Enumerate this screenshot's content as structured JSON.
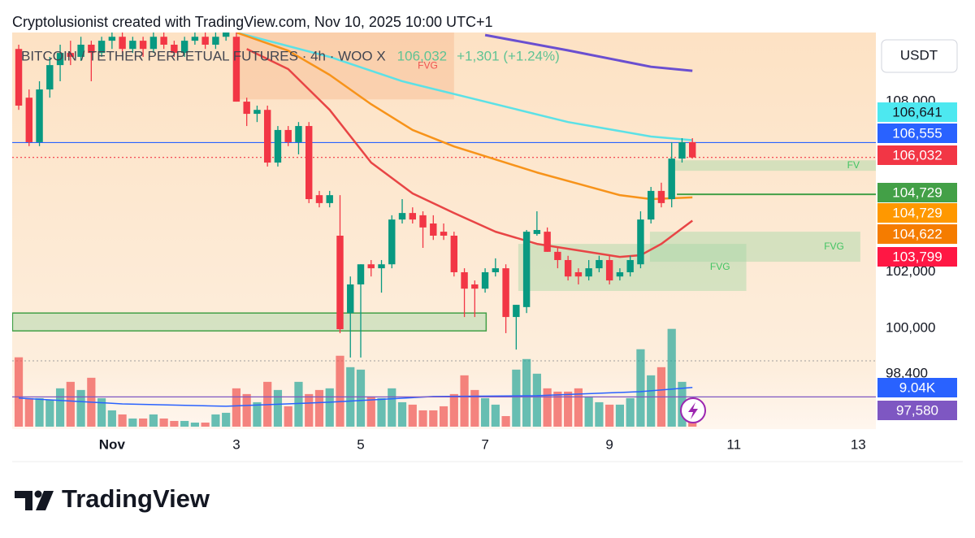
{
  "chart_data": {
    "type": "candlestick",
    "header": "Cryptolusionist created with TradingView.com, Nov 10, 2025 10:00 UTC+1",
    "title": "BITCOIN / TETHER PERPETUAL FUTURES · 4h · WOO X",
    "legend_price": "106,032",
    "legend_change": "+1,301 (+1.24%)",
    "currency": "USDT",
    "brand": "TradingView",
    "up_color": "#089981",
    "down_color": "#f23645",
    "x": [
      0,
      1,
      2,
      3,
      4,
      5,
      6,
      7,
      8,
      9,
      10,
      11,
      12,
      13,
      14,
      15,
      16,
      17,
      18,
      19,
      20,
      21,
      22,
      23,
      24,
      25,
      26,
      27,
      28,
      29,
      30,
      31,
      32,
      33,
      34,
      35,
      36,
      37,
      38,
      39,
      40,
      41,
      42,
      43,
      44,
      45,
      46,
      47,
      48,
      49,
      50,
      51,
      52,
      53,
      54,
      55,
      56,
      57,
      58,
      59,
      60,
      61,
      62,
      63,
      64,
      65
    ],
    "open": [
      109860,
      108140,
      106570,
      108430,
      109290,
      109720,
      109580,
      110010,
      109720,
      110150,
      110290,
      109860,
      110150,
      109860,
      110290,
      110010,
      109720,
      110150,
      110290,
      110010,
      110290,
      110290,
      108000,
      107570,
      107710,
      105850,
      107000,
      106570,
      107140,
      104700,
      104420,
      103270,
      100540,
      101550,
      102260,
      102120,
      102260,
      103840,
      104070,
      103990,
      103700,
      103410,
      103270,
      101980,
      101550,
      101400,
      101980,
      102120,
      100400,
      100750,
      103330,
      103410,
      102700,
      102410,
      101980,
      101830,
      102120,
      102410,
      101830,
      101980,
      102260,
      103840,
      104850,
      104560,
      105990,
      106570
    ],
    "high": [
      110010,
      108430,
      108720,
      109580,
      110010,
      110150,
      110290,
      110150,
      110290,
      110440,
      110440,
      110290,
      110290,
      110440,
      110440,
      110150,
      110290,
      110440,
      110440,
      110440,
      110580,
      110440,
      108140,
      107860,
      107860,
      107140,
      107140,
      107280,
      107280,
      104850,
      104850,
      104700,
      101830,
      102260,
      102410,
      102410,
      103990,
      104560,
      104270,
      104130,
      103990,
      103700,
      103410,
      102120,
      101690,
      102120,
      102470,
      102260,
      100830,
      103470,
      104130,
      103560,
      102840,
      102560,
      102120,
      102410,
      102560,
      102560,
      102120,
      102560,
      104130,
      104990,
      105140,
      106570,
      106710,
      106710
    ],
    "low": [
      107710,
      106430,
      106430,
      108140,
      108720,
      109290,
      109440,
      108720,
      109580,
      109860,
      109720,
      109720,
      109580,
      109720,
      109860,
      109580,
      109580,
      110010,
      109860,
      109860,
      110150,
      108000,
      107140,
      107280,
      105710,
      105710,
      106430,
      106140,
      104420,
      104270,
      104270,
      99830,
      98970,
      98970,
      101830,
      101260,
      102120,
      103700,
      103700,
      102840,
      103120,
      103120,
      101830,
      100400,
      100400,
      101260,
      101830,
      99830,
      99250,
      100540,
      103270,
      102700,
      102120,
      101690,
      101550,
      101690,
      101980,
      101550,
      101690,
      101830,
      102120,
      103700,
      104270,
      104270,
      105850,
      105990
    ],
    "close": [
      107860,
      106570,
      108430,
      109290,
      109720,
      109580,
      110010,
      109720,
      110150,
      110290,
      109860,
      110150,
      109860,
      110290,
      110010,
      109720,
      110150,
      110290,
      110010,
      110290,
      110440,
      108000,
      107570,
      107710,
      105850,
      107000,
      106570,
      107140,
      104560,
      104420,
      104700,
      99970,
      101550,
      102260,
      102120,
      102260,
      103840,
      104070,
      103840,
      103560,
      103270,
      103270,
      101980,
      101400,
      101400,
      101980,
      102120,
      100400,
      100830,
      103410,
      103470,
      102700,
      102410,
      101830,
      101830,
      102120,
      102410,
      101690,
      101980,
      102410,
      103840,
      104850,
      104420,
      105990,
      106570,
      106032
    ],
    "volume": [
      16000,
      6580,
      6580,
      6200,
      8840,
      10340,
      8460,
      11280,
      6580,
      3760,
      2820,
      1880,
      1880,
      2820,
      1880,
      1320,
      1320,
      940,
      940,
      2820,
      3200,
      8840,
      7520,
      5640,
      10340,
      8460,
      4700,
      10340,
      7520,
      8460,
      8840,
      16360,
      13720,
      13160,
      6960,
      6580,
      8840,
      5640,
      5080,
      3760,
      3760,
      4700,
      7520,
      11840,
      8460,
      6580,
      5080,
      2440,
      13160,
      15600,
      12220,
      8840,
      8080,
      8080,
      8840,
      6960,
      5640,
      5080,
      5080,
      6580,
      17860,
      11840,
      13720,
      22560,
      10340,
      5640
    ],
    "volume_ma": {
      "color": "#2962ff",
      "x": [
        0,
        10,
        20,
        30,
        40,
        50,
        60,
        65
      ],
      "values": [
        6580,
        5260,
        4700,
        5640,
        6960,
        7140,
        8080,
        9040
      ]
    },
    "moving_averages": [
      {
        "color": "#6a4fd0",
        "width": 3,
        "x": [
          45,
          53,
          61,
          65
        ],
        "values": [
          110350,
          109810,
          109230,
          109090
        ]
      },
      {
        "color": "#5ce1e6",
        "width": 2.5,
        "x": [
          21,
          30,
          37,
          45,
          53,
          61,
          65
        ],
        "values": [
          110440,
          109580,
          108720,
          108000,
          107280,
          106770,
          106641
        ]
      },
      {
        "color": "#f7931a",
        "width": 2.5,
        "x": [
          21,
          26,
          30,
          34,
          38,
          42,
          46,
          50,
          54,
          58,
          61,
          65
        ],
        "values": [
          110440,
          109800,
          108945,
          107910,
          107000,
          106420,
          105960,
          105500,
          105100,
          104700,
          104560,
          104622
        ]
      },
      {
        "color": "#e84545",
        "width": 2.5,
        "x": [
          22,
          26,
          30,
          34,
          38,
          42,
          46,
          50,
          54,
          58,
          60,
          62,
          65
        ],
        "values": [
          109860,
          109150,
          107710,
          105850,
          104760,
          104070,
          103410,
          102980,
          102750,
          102520,
          102580,
          102980,
          103799
        ]
      }
    ],
    "zones": [
      {
        "x": [
          21,
          42
        ],
        "y": [
          108080,
          110440
        ],
        "color": "#f7b98f",
        "label": "FVG",
        "label_color": "#ef5350"
      },
      {
        "x": [
          -0.6,
          45.1
        ],
        "y": [
          99910,
          100540
        ],
        "color": "#a5d6a7",
        "outline": "#43a047"
      },
      {
        "x": [
          48.2,
          70.2
        ],
        "y": [
          101320,
          102980
        ],
        "color": "#a5d6a7",
        "label": "FVG",
        "label_color": "#43c463"
      },
      {
        "x": [
          60.9,
          81.2
        ],
        "y": [
          102350,
          103410
        ],
        "color": "#a5d6a7",
        "label": "FVG",
        "label_color": "#43c463"
      },
      {
        "x": [
          63.3,
          82.7
        ],
        "y": [
          105560,
          105930
        ],
        "color": "#a5d6a7",
        "label": "FV",
        "label_color": "#43c463"
      }
    ],
    "price_labels": [
      {
        "value": 106641,
        "label": "106,641",
        "color": "#4de8f0"
      },
      {
        "value": 106555,
        "label": "106,555",
        "color": "#2962ff",
        "line": "solid"
      },
      {
        "value": 106032,
        "label": "106,032",
        "color": "#f23645",
        "line": "dotted"
      },
      {
        "value": 104729,
        "label": "104,729",
        "color": "#43a047",
        "line": "solid",
        "from": 63.5
      },
      {
        "value": 104729,
        "label": "104,729",
        "color": "#ff9800"
      },
      {
        "value": 104622,
        "label": "104,622",
        "color": "#f57c00"
      },
      {
        "value": 103799,
        "label": "103,799",
        "color": "#ff1744"
      },
      {
        "value": 9040,
        "label": "9.04K",
        "color": "#2962ff",
        "axis": "volume"
      },
      {
        "value": 97580,
        "label": "97,580",
        "color": "#7e57c2",
        "line": "solid"
      }
    ],
    "xlim": [
      -0.63,
      82.7
    ],
    "xticks": [
      {
        "value": 9,
        "label": "Nov"
      },
      {
        "value": 21,
        "label": "3"
      },
      {
        "value": 33,
        "label": "5"
      },
      {
        "value": 45,
        "label": "7"
      },
      {
        "value": 57,
        "label": "9"
      },
      {
        "value": 69,
        "label": "11"
      },
      {
        "value": 81,
        "label": "13"
      }
    ],
    "ylim": [
      96530,
      110440
    ],
    "yticks": [
      {
        "value": 108000,
        "label": "108,000"
      },
      {
        "value": 102000,
        "label": "102,000"
      },
      {
        "value": 100000,
        "label": "100,000"
      },
      {
        "value": 98400,
        "label": "98,400"
      }
    ],
    "volume_lim": [
      0,
      24000
    ]
  }
}
